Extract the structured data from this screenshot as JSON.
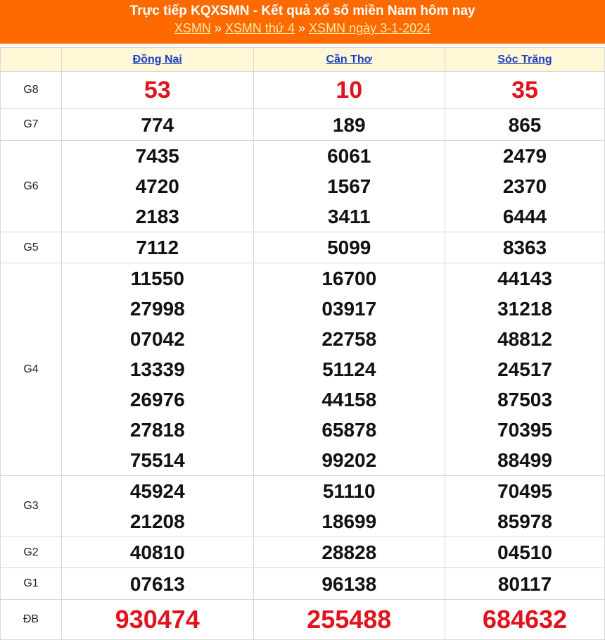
{
  "header": {
    "title": "Trực tiếp KQXSMN - Kết quả xổ số miền Nam hôm nay",
    "breadcrumb": [
      "XSMN",
      "XSMN thứ 4",
      "XSMN ngày 3-1-2024"
    ],
    "separator": "»"
  },
  "colors": {
    "header_bg": "#ff6a00",
    "highlight": "#e0141e",
    "table_header_bg": "#fff7d6"
  },
  "provinces": [
    "Đồng Nai",
    "Cần Thơ",
    "Sóc Trăng"
  ],
  "rows": [
    {
      "label": "G8",
      "red": true,
      "values": [
        [
          "53"
        ],
        [
          "10"
        ],
        [
          "35"
        ]
      ]
    },
    {
      "label": "G7",
      "values": [
        [
          "774"
        ],
        [
          "189"
        ],
        [
          "865"
        ]
      ]
    },
    {
      "label": "G6",
      "values": [
        [
          "7435",
          "4720",
          "2183"
        ],
        [
          "6061",
          "1567",
          "3411"
        ],
        [
          "2479",
          "2370",
          "6444"
        ]
      ]
    },
    {
      "label": "G5",
      "values": [
        [
          "7112"
        ],
        [
          "5099"
        ],
        [
          "8363"
        ]
      ]
    },
    {
      "label": "G4",
      "values": [
        [
          "11550",
          "27998",
          "07042",
          "13339",
          "26976",
          "27818",
          "75514"
        ],
        [
          "16700",
          "03917",
          "22758",
          "51124",
          "44158",
          "65878",
          "99202"
        ],
        [
          "44143",
          "31218",
          "48812",
          "24517",
          "87503",
          "70395",
          "88499"
        ]
      ]
    },
    {
      "label": "G3",
      "values": [
        [
          "45924",
          "21208"
        ],
        [
          "51110",
          "18699"
        ],
        [
          "70495",
          "85978"
        ]
      ]
    },
    {
      "label": "G2",
      "values": [
        [
          "40810"
        ],
        [
          "28828"
        ],
        [
          "04510"
        ]
      ]
    },
    {
      "label": "G1",
      "values": [
        [
          "07613"
        ],
        [
          "96138"
        ],
        [
          "80117"
        ]
      ]
    },
    {
      "label": "ĐB",
      "red": true,
      "values": [
        [
          "930474"
        ],
        [
          "255488"
        ],
        [
          "684632"
        ]
      ]
    }
  ]
}
